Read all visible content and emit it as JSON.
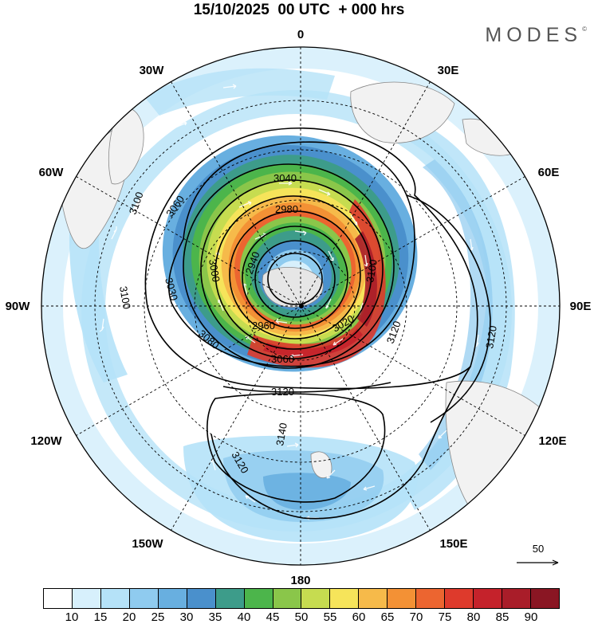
{
  "header": {
    "title": "15/10/2025  00 UTC  + 000 hrs",
    "brand": "MODES",
    "brand_mark": "©"
  },
  "map": {
    "projection": "south-polar-stereographic",
    "longitude_labels": {
      "lon_0": "0",
      "lon_30e": "30E",
      "lon_60e": "60E",
      "lon_90e": "90E",
      "lon_120e": "120E",
      "lon_150e": "150E",
      "lon_180": "180",
      "lon_150w": "150W",
      "lon_120w": "120W",
      "lon_90w": "90W",
      "lon_60w": "60W",
      "lon_30w": "30W"
    },
    "height_contours": [
      {
        "label": "2940",
        "level": 2940
      },
      {
        "label": "2960",
        "level": 2960
      },
      {
        "label": "2980",
        "level": 2980
      },
      {
        "label": "3000",
        "level": 3000
      },
      {
        "label": "3020",
        "level": 3020
      },
      {
        "label": "3030",
        "level": 3030
      },
      {
        "label": "3040",
        "level": 3040
      },
      {
        "label": "3060",
        "level": 3060
      },
      {
        "label": "3080",
        "level": 3080
      },
      {
        "label": "3100",
        "level": 3100
      },
      {
        "label": "3120",
        "level": 3120
      },
      {
        "label": "3140",
        "level": 3140
      }
    ],
    "reference_vector": "50"
  },
  "colorbar": {
    "colors": [
      "#ffffff",
      "#d7f0fc",
      "#b5e2f8",
      "#8fcbef",
      "#68afe0",
      "#4a90cc",
      "#3d9c8a",
      "#4cb54b",
      "#8ac64a",
      "#c6dc50",
      "#f6e45a",
      "#f6ba4a",
      "#f39135",
      "#ec6530",
      "#de3a2c",
      "#c5222b",
      "#a91d29",
      "#8a1623"
    ],
    "ticks": [
      "10",
      "15",
      "20",
      "25",
      "30",
      "35",
      "40",
      "45",
      "50",
      "55",
      "60",
      "65",
      "70",
      "75",
      "80",
      "85",
      "90"
    ]
  }
}
